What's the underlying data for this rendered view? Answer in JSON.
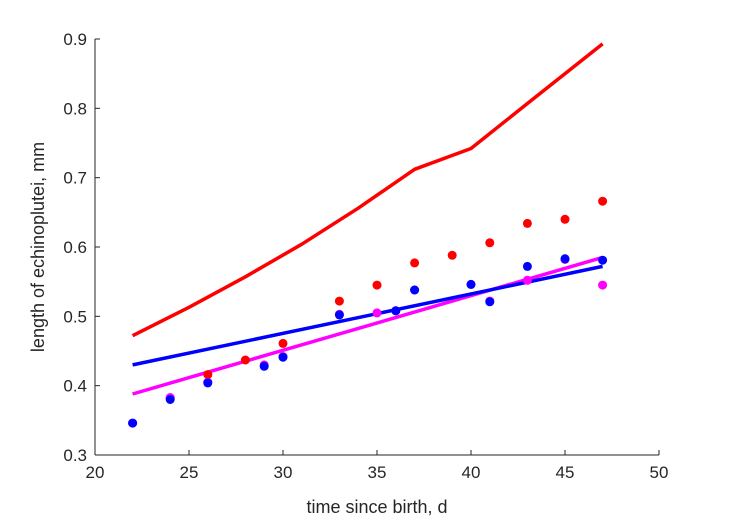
{
  "chart_data": {
    "type": "scatter",
    "title": "",
    "xlabel": "time since birth, d",
    "ylabel": "length of echinoplutei, mm",
    "xlim": [
      20,
      50
    ],
    "ylim": [
      0.3,
      0.9
    ],
    "xticks": [
      20,
      25,
      30,
      35,
      40,
      45,
      50
    ],
    "yticks": [
      0.3,
      0.4,
      0.5,
      0.6,
      0.7,
      0.8,
      0.9
    ],
    "xtick_labels": [
      "20",
      "25",
      "30",
      "35",
      "40",
      "45",
      "50"
    ],
    "ytick_labels": [
      "0.3",
      "0.4",
      "0.5",
      "0.6",
      "0.7",
      "0.8",
      "0.9"
    ],
    "grid": false,
    "legend": "none",
    "series": [
      {
        "kind": "points",
        "color": "#ff0000",
        "x": [
          24,
          26,
          28,
          30,
          33,
          35,
          37,
          39,
          41,
          43,
          45,
          47
        ],
        "y": [
          0.382,
          0.416,
          0.437,
          0.461,
          0.522,
          0.545,
          0.577,
          0.588,
          0.606,
          0.634,
          0.64,
          0.666
        ]
      },
      {
        "kind": "points",
        "color": "#ff00ff",
        "x": [
          22,
          24,
          26,
          29,
          30,
          33,
          35,
          36,
          37,
          40,
          41,
          43,
          45,
          47
        ],
        "y": [
          0.346,
          0.383,
          0.405,
          0.43,
          0.442,
          0.503,
          0.505,
          0.508,
          0.538,
          0.546,
          0.522,
          0.552,
          0.582,
          0.545
        ]
      },
      {
        "kind": "points",
        "color": "#0000ff",
        "x": [
          22,
          24,
          26,
          29,
          30,
          33,
          36,
          37,
          40,
          41,
          43,
          45,
          47
        ],
        "y": [
          0.346,
          0.38,
          0.404,
          0.428,
          0.441,
          0.502,
          0.508,
          0.538,
          0.546,
          0.521,
          0.572,
          0.583,
          0.581
        ]
      },
      {
        "kind": "line",
        "color": "#ff0000",
        "x": [
          22,
          25,
          28,
          31,
          34,
          37,
          40,
          43,
          47
        ],
        "y": [
          0.472,
          0.513,
          0.557,
          0.604,
          0.656,
          0.712,
          0.742,
          0.807,
          0.893
        ]
      },
      {
        "kind": "line",
        "color": "#ff00ff",
        "x": [
          22,
          47
        ],
        "y": [
          0.388,
          0.585
        ]
      },
      {
        "kind": "line",
        "color": "#0000ff",
        "x": [
          22,
          47
        ],
        "y": [
          0.43,
          0.572
        ]
      }
    ]
  }
}
